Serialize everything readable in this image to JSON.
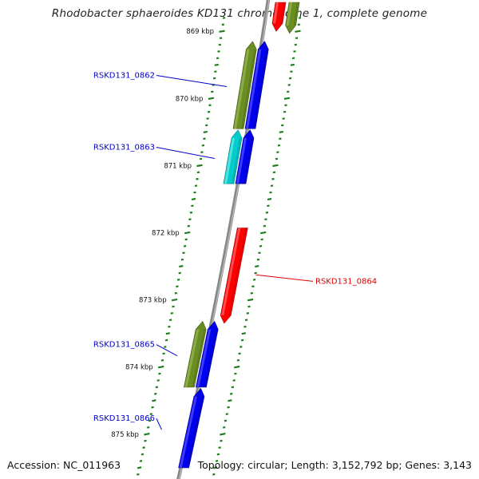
{
  "title": "Rhodobacter sphaeroides KD131 chromosome 1, complete genome",
  "accession": "Accession: NC_011963",
  "topology": "Topology: circular; Length: 3,152,792 bp; Genes: 3,143",
  "colors": {
    "backbone": "#888888",
    "tick": "#1e7d1e",
    "label_blue": "#0000cc",
    "label_red": "#dd0000",
    "gene_blue": "#0000ee",
    "gene_olive": "#6b8e23",
    "gene_cyan": "#00cccc",
    "gene_red": "#ff0000"
  },
  "ruler": {
    "labels": [
      "869 kbp",
      "870 kbp",
      "871 kbp",
      "872 kbp",
      "873 kbp",
      "874 kbp",
      "875 kbp"
    ]
  },
  "genes": [
    {
      "label": "",
      "color": "red",
      "strand": "reverse",
      "track": "inner",
      "start_kbp": 868.57,
      "end_kbp": 869.0
    },
    {
      "label": "",
      "color": "olive",
      "strand": "reverse",
      "track": "inner",
      "start_kbp": 868.57,
      "end_kbp": 869.03
    },
    {
      "label": "RSKD131_0862",
      "color": "olive",
      "strand": "forward",
      "track": "outer",
      "start_kbp": 869.15,
      "end_kbp": 870.45,
      "label_color": "blue"
    },
    {
      "label": "",
      "color": "blue",
      "strand": "forward",
      "track": "outer",
      "start_kbp": 869.15,
      "end_kbp": 870.45
    },
    {
      "label": "RSKD131_0863",
      "color": "cyan",
      "strand": "forward",
      "track": "outer",
      "start_kbp": 870.47,
      "end_kbp": 871.27,
      "label_color": "blue"
    },
    {
      "label": "",
      "color": "blue",
      "strand": "forward",
      "track": "outer",
      "start_kbp": 870.47,
      "end_kbp": 871.27
    },
    {
      "label": "RSKD131_0864",
      "color": "red",
      "strand": "reverse",
      "track": "inner",
      "start_kbp": 871.93,
      "end_kbp": 873.35,
      "label_color": "red"
    },
    {
      "label": "RSKD131_0865",
      "color": "olive",
      "strand": "forward",
      "track": "outer",
      "start_kbp": 873.32,
      "end_kbp": 874.3,
      "label_color": "blue"
    },
    {
      "label": "",
      "color": "blue",
      "strand": "forward",
      "track": "outer",
      "start_kbp": 873.32,
      "end_kbp": 874.3
    },
    {
      "label": "RSKD131_0866",
      "color": "blue",
      "strand": "forward",
      "track": "outer",
      "start_kbp": 874.32,
      "end_kbp": 875.5,
      "label_color": "blue"
    }
  ]
}
